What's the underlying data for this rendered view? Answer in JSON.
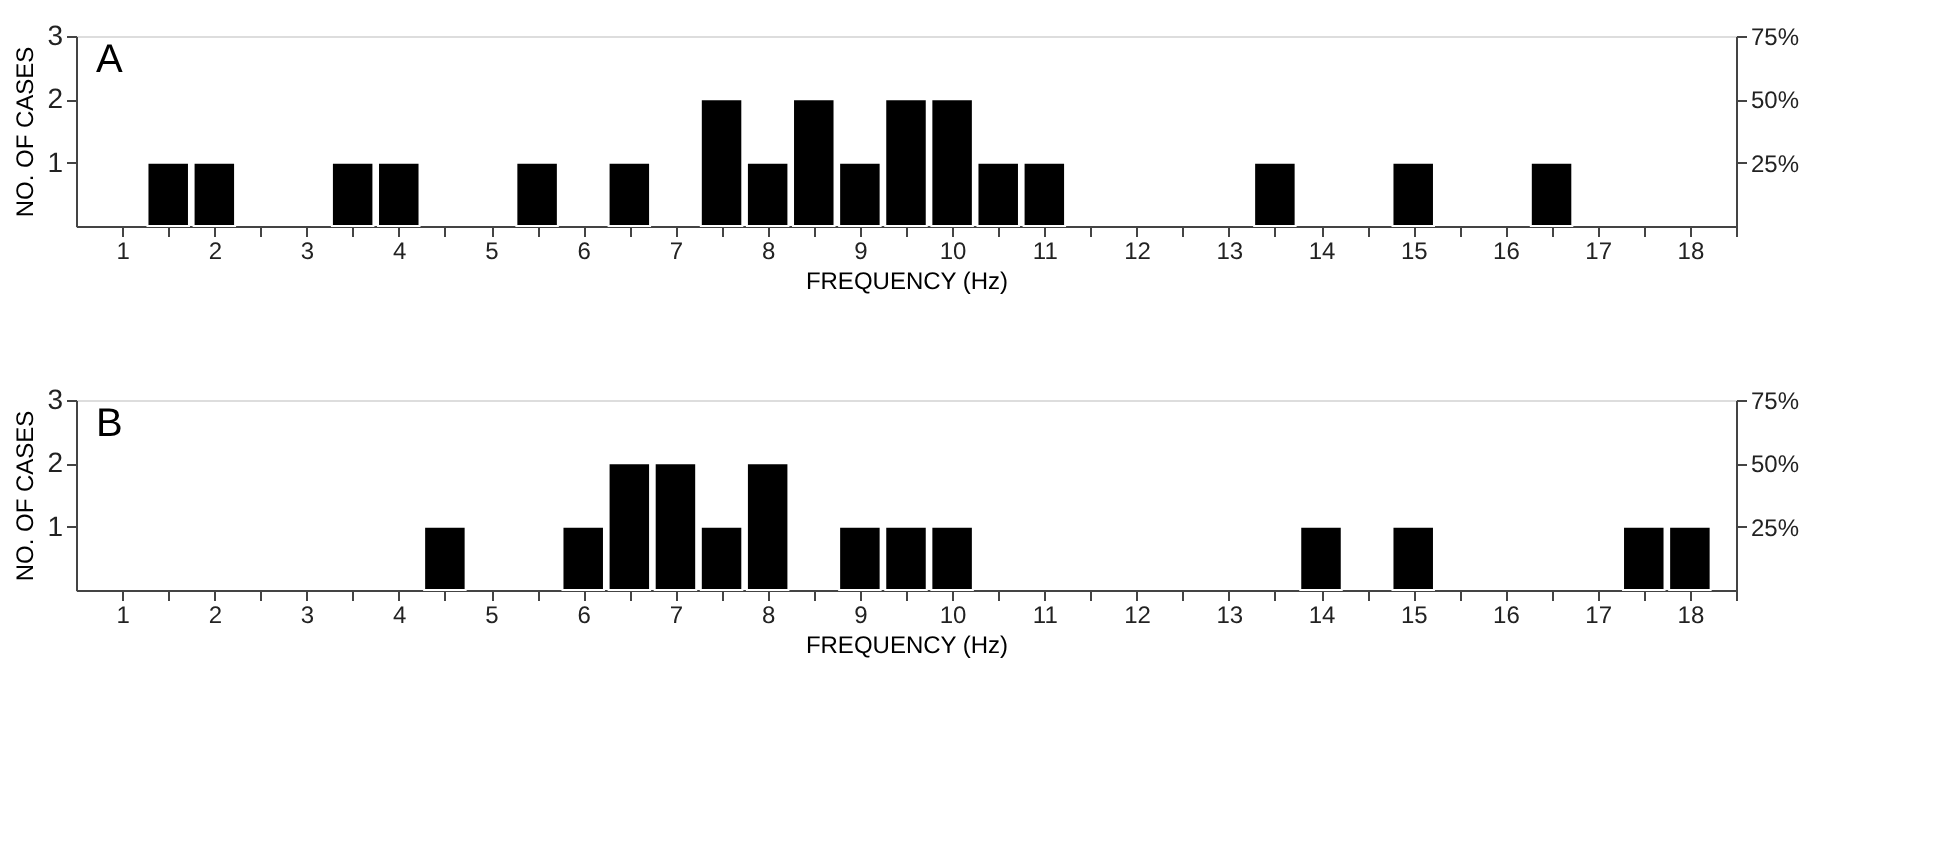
{
  "chart_data": [
    {
      "type": "bar",
      "xlabel": "FREQUENCY (Hz)",
      "ylabel": "NO. OF CASES",
      "annotations": [
        "A"
      ],
      "color": "#000000",
      "x": [
        1.5,
        2,
        3.5,
        4,
        5.5,
        6.5,
        7.5,
        8,
        8.5,
        9,
        9.5,
        10,
        10.5,
        11,
        13.5,
        15,
        16.5
      ],
      "values": [
        1,
        1,
        1,
        1,
        1,
        1,
        2,
        1,
        2,
        1,
        2,
        2,
        1,
        1,
        1,
        1,
        1
      ],
      "xlim": [
        0.5,
        18.5
      ],
      "xticks": [
        1,
        {
          "value": 1.5,
          "label": null
        },
        2,
        {
          "value": 2.5,
          "label": null
        },
        3,
        {
          "value": 3.5,
          "label": null
        },
        4,
        {
          "value": 4.5,
          "label": null
        },
        5,
        {
          "value": 5.5,
          "label": null
        },
        6,
        {
          "value": 6.5,
          "label": null
        },
        7,
        {
          "value": 7.5,
          "label": null
        },
        8,
        {
          "value": 8.5,
          "label": null
        },
        9,
        {
          "value": 9.5,
          "label": null
        },
        10,
        {
          "value": 10.5,
          "label": null
        },
        11,
        {
          "value": 11.5,
          "label": null
        },
        12,
        {
          "value": 12.5,
          "label": null
        },
        13,
        {
          "value": 13.5,
          "label": null
        },
        14,
        {
          "value": 14.5,
          "label": null
        },
        15,
        {
          "value": 15.5,
          "label": null
        },
        16,
        {
          "value": 16.5,
          "label": null
        },
        17,
        {
          "value": 17.5,
          "label": null
        },
        18,
        {
          "value": 18.5,
          "label": null
        }
      ],
      "ylim": [
        0,
        3
      ],
      "yticks": [
        1,
        2,
        3
      ],
      "y2lim": [
        0,
        75
      ],
      "y2ticks": [
        {
          "value": 25,
          "label": "25%"
        },
        {
          "value": 50,
          "label": "50%"
        },
        {
          "value": 75,
          "label": "75%"
        }
      ],
      "grid": false
    },
    {
      "type": "bar",
      "xlabel": "FREQUENCY (Hz)",
      "ylabel": "NO. OF CASES",
      "annotations": [
        "B"
      ],
      "color": "#000000",
      "x": [
        4.5,
        6,
        6.5,
        7,
        7.5,
        8,
        9,
        9.5,
        10,
        14,
        15,
        17.5,
        18
      ],
      "values": [
        1,
        1,
        2,
        2,
        1,
        2,
        1,
        1,
        1,
        1,
        1,
        1,
        1
      ],
      "xlim": [
        0.5,
        18.5
      ],
      "xticks": [
        1,
        {
          "value": 1.5,
          "label": null
        },
        2,
        {
          "value": 2.5,
          "label": null
        },
        3,
        {
          "value": 3.5,
          "label": null
        },
        4,
        {
          "value": 4.5,
          "label": null
        },
        5,
        {
          "value": 5.5,
          "label": null
        },
        6,
        {
          "value": 6.5,
          "label": null
        },
        7,
        {
          "value": 7.5,
          "label": null
        },
        8,
        {
          "value": 8.5,
          "label": null
        },
        9,
        {
          "value": 9.5,
          "label": null
        },
        10,
        {
          "value": 10.5,
          "label": null
        },
        11,
        {
          "value": 11.5,
          "label": null
        },
        12,
        {
          "value": 12.5,
          "label": null
        },
        13,
        {
          "value": 13.5,
          "label": null
        },
        14,
        {
          "value": 14.5,
          "label": null
        },
        15,
        {
          "value": 15.5,
          "label": null
        },
        16,
        {
          "value": 16.5,
          "label": null
        },
        17,
        {
          "value": 17.5,
          "label": null
        },
        18,
        {
          "value": 18.5,
          "label": null
        }
      ],
      "ylim": [
        0,
        3
      ],
      "yticks": [
        1,
        2,
        3
      ],
      "y2lim": [
        0,
        75
      ],
      "y2ticks": [
        {
          "value": 25,
          "label": "25%"
        },
        {
          "value": 50,
          "label": "50%"
        },
        {
          "value": 75,
          "label": "75%"
        }
      ],
      "grid": false
    }
  ]
}
